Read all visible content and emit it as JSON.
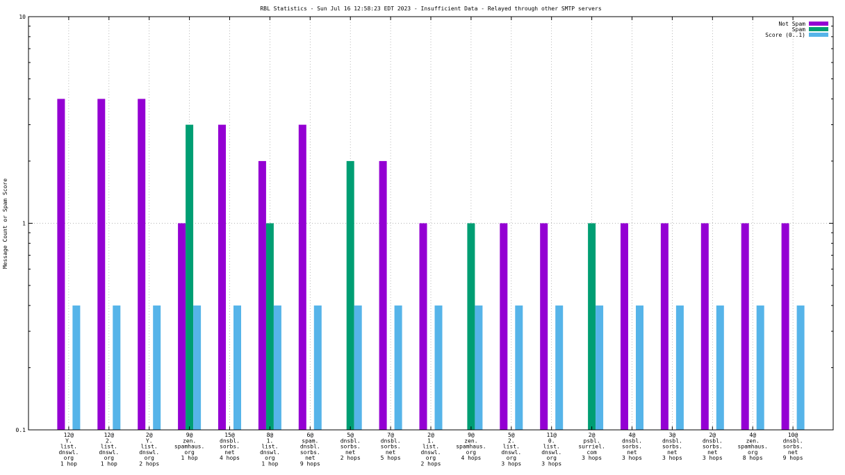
{
  "chart_data": {
    "type": "bar",
    "title": "RBL Statistics - Sun Jul 16 12:58:23 EDT 2023 - Insufficient Data - Relayed through other SMTP servers",
    "xlabel": "",
    "ylabel": "Message Count or Spam Score",
    "yscale": "log",
    "ylim": [
      0.1,
      10
    ],
    "yticks": [
      "0.1",
      "1",
      "10"
    ],
    "grid": true,
    "legend_position": "top-right",
    "categories": [
      [
        "12@",
        "Y.",
        "list.",
        "dnswl.",
        "org",
        "1 hop"
      ],
      [
        "12@",
        "2.",
        "list.",
        "dnswl.",
        "org",
        "1 hop"
      ],
      [
        "2@",
        "Y.",
        "list.",
        "dnswl.",
        "org",
        "2 hops"
      ],
      [
        "9@",
        "zen.",
        "spamhaus.",
        "org",
        "1 hop"
      ],
      [
        "15@",
        "dnsbl.",
        "sorbs.",
        "net",
        "4 hops"
      ],
      [
        "8@",
        "1.",
        "list.",
        "dnswl.",
        "org",
        "1 hop"
      ],
      [
        "6@",
        "spam.",
        "dnsbl.",
        "sorbs.",
        "net",
        "9 hops"
      ],
      [
        "5@",
        "dnsbl.",
        "sorbs.",
        "net",
        "2 hops"
      ],
      [
        "7@",
        "dnsbl.",
        "sorbs.",
        "net",
        "5 hops"
      ],
      [
        "2@",
        "1.",
        "list.",
        "dnswl.",
        "org",
        "2 hops"
      ],
      [
        "9@",
        "zen.",
        "spamhaus.",
        "org",
        "4 hops"
      ],
      [
        "5@",
        "2.",
        "list.",
        "dnswl.",
        "org",
        "3 hops"
      ],
      [
        "11@",
        "0.",
        "list.",
        "dnswl.",
        "org",
        "3 hops"
      ],
      [
        "2@",
        "psbl.",
        "surriel.",
        "com",
        "3 hops"
      ],
      [
        "4@",
        "dnsbl.",
        "sorbs.",
        "net",
        "3 hops"
      ],
      [
        "3@",
        "dnsbl.",
        "sorbs.",
        "net",
        "3 hops"
      ],
      [
        "2@",
        "dnsbl.",
        "sorbs.",
        "net",
        "3 hops"
      ],
      [
        "4@",
        "zen.",
        "spamhaus.",
        "org",
        "8 hops"
      ],
      [
        "10@",
        "dnsbl.",
        "sorbs.",
        "net",
        "9 hops"
      ]
    ],
    "series": [
      {
        "name": "Not Spam",
        "color": "#9400d3",
        "values": [
          4,
          4,
          4,
          1,
          3,
          2,
          3,
          0,
          2,
          1,
          0,
          1,
          1,
          0,
          1,
          1,
          1,
          1,
          1
        ]
      },
      {
        "name": "Spam",
        "color": "#009e73",
        "values": [
          0,
          0,
          0,
          3,
          0,
          1,
          0,
          2,
          0,
          0,
          1,
          0,
          0,
          1,
          0,
          0,
          0,
          0,
          0
        ]
      },
      {
        "name": "Score (0..1)",
        "color": "#56b4e9",
        "values": [
          0.4,
          0.4,
          0.4,
          0.4,
          0.4,
          0.4,
          0.4,
          0.4,
          0.4,
          0.4,
          0.4,
          0.4,
          0.4,
          0.4,
          0.4,
          0.4,
          0.4,
          0.4,
          0.4
        ]
      }
    ]
  }
}
